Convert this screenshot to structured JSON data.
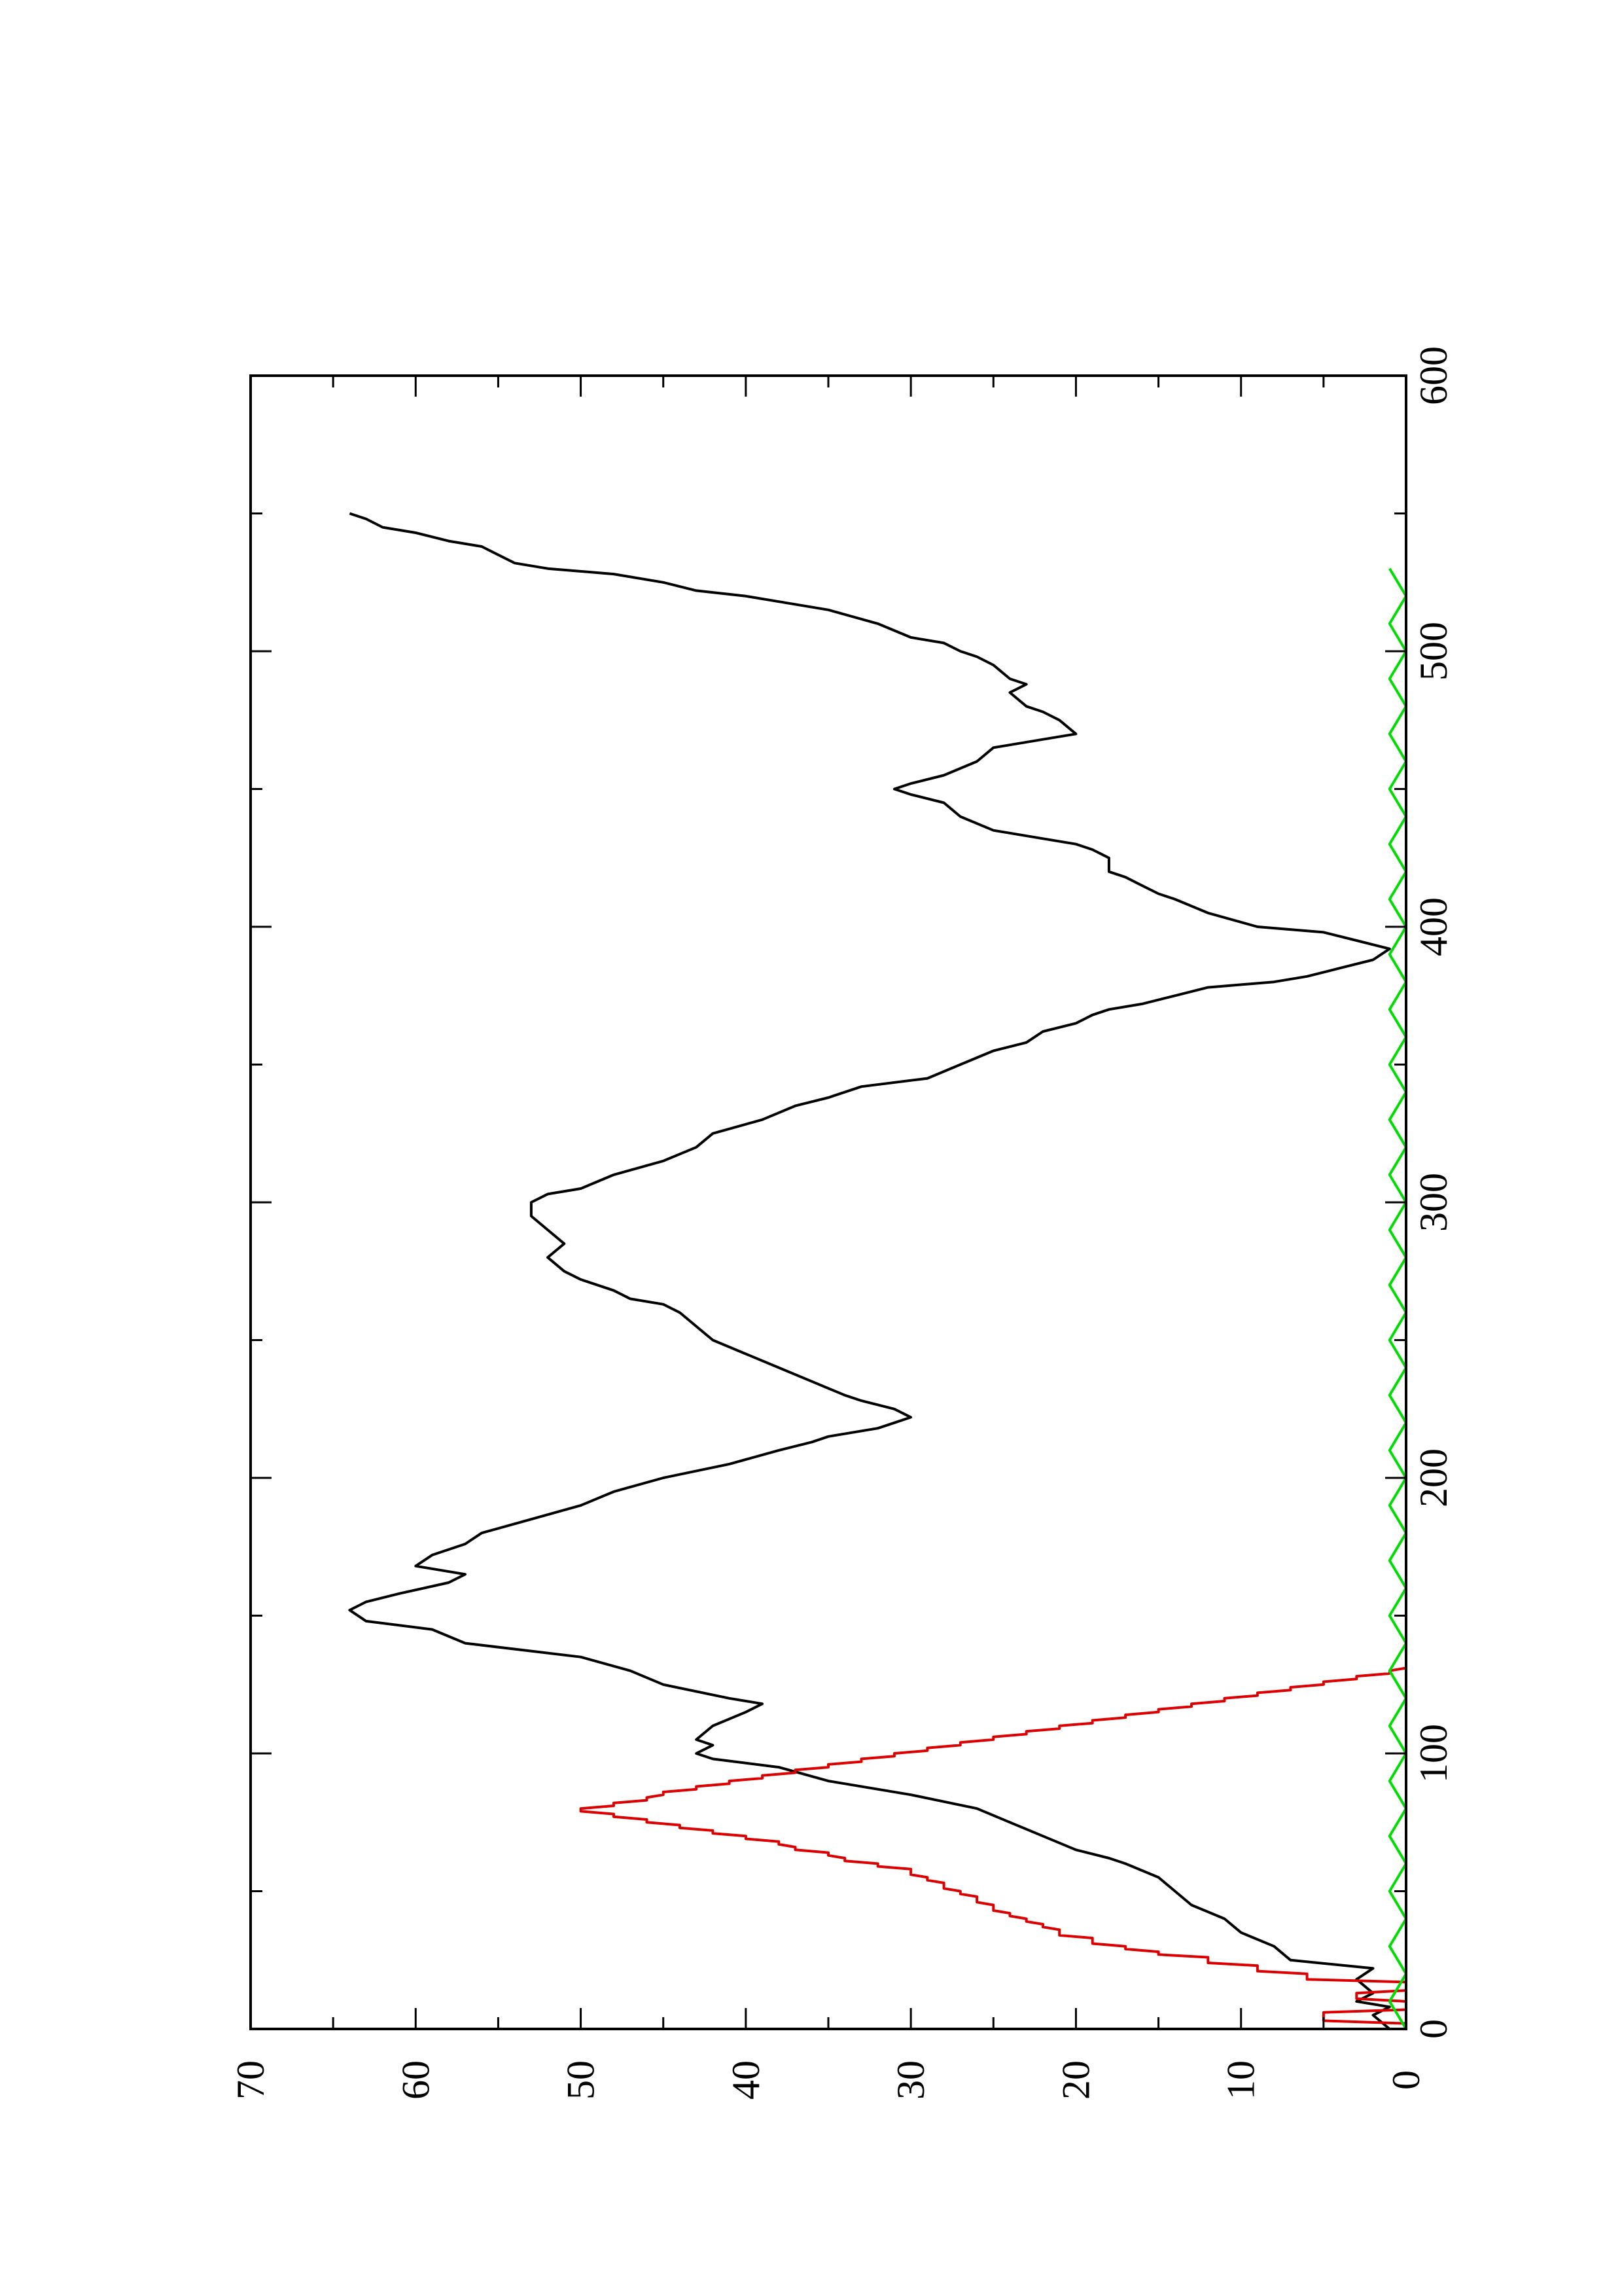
{
  "chart_data": {
    "type": "line",
    "orientation": "rotated-90-ccw",
    "xlim": [
      0,
      600
    ],
    "ylim": [
      0,
      70
    ],
    "x_ticks": [
      0,
      100,
      200,
      300,
      400,
      500,
      600
    ],
    "x_minor_ticks": [
      50,
      150,
      250,
      350,
      450,
      550
    ],
    "y_ticks": [
      0,
      10,
      20,
      30,
      40,
      50,
      60,
      70
    ],
    "y_minor_ticks": [
      5,
      15,
      25,
      35,
      45,
      55,
      65
    ],
    "grid": false,
    "legend": "none",
    "title": "",
    "xlabel": "",
    "ylabel": "",
    "series": [
      {
        "color": "#000000",
        "points": [
          [
            0,
            1
          ],
          [
            5,
            2
          ],
          [
            8,
            1
          ],
          [
            10,
            3
          ],
          [
            13,
            2
          ],
          [
            18,
            3
          ],
          [
            22,
            2
          ],
          [
            25,
            7
          ],
          [
            30,
            8
          ],
          [
            35,
            10
          ],
          [
            40,
            11
          ],
          [
            45,
            13
          ],
          [
            50,
            14
          ],
          [
            55,
            15
          ],
          [
            60,
            17
          ],
          [
            62,
            18
          ],
          [
            65,
            20
          ],
          [
            70,
            22
          ],
          [
            75,
            24
          ],
          [
            80,
            26
          ],
          [
            85,
            30
          ],
          [
            90,
            35
          ],
          [
            95,
            38
          ],
          [
            98,
            42
          ],
          [
            100,
            43
          ],
          [
            103,
            42
          ],
          [
            105,
            43
          ],
          [
            110,
            42
          ],
          [
            115,
            40
          ],
          [
            118,
            39
          ],
          [
            120,
            41
          ],
          [
            125,
            45
          ],
          [
            130,
            47
          ],
          [
            135,
            50
          ],
          [
            140,
            57
          ],
          [
            145,
            59
          ],
          [
            148,
            63
          ],
          [
            152,
            64
          ],
          [
            155,
            63
          ],
          [
            158,
            61
          ],
          [
            162,
            58
          ],
          [
            165,
            57
          ],
          [
            168,
            60
          ],
          [
            172,
            59
          ],
          [
            176,
            57
          ],
          [
            180,
            56
          ],
          [
            185,
            53
          ],
          [
            190,
            50
          ],
          [
            195,
            48
          ],
          [
            200,
            45
          ],
          [
            205,
            41
          ],
          [
            210,
            38
          ],
          [
            213,
            36
          ],
          [
            215,
            35
          ],
          [
            218,
            32
          ],
          [
            220,
            31
          ],
          [
            222,
            30
          ],
          [
            225,
            31
          ],
          [
            228,
            33
          ],
          [
            230,
            34
          ],
          [
            235,
            36
          ],
          [
            240,
            38
          ],
          [
            245,
            40
          ],
          [
            250,
            42
          ],
          [
            255,
            43
          ],
          [
            260,
            44
          ],
          [
            263,
            45
          ],
          [
            265,
            47
          ],
          [
            268,
            48
          ],
          [
            272,
            50
          ],
          [
            275,
            51
          ],
          [
            280,
            52
          ],
          [
            285,
            51
          ],
          [
            290,
            52
          ],
          [
            295,
            53
          ],
          [
            300,
            53
          ],
          [
            303,
            52
          ],
          [
            305,
            50
          ],
          [
            310,
            48
          ],
          [
            315,
            45
          ],
          [
            320,
            43
          ],
          [
            325,
            42
          ],
          [
            330,
            39
          ],
          [
            335,
            37
          ],
          [
            338,
            35
          ],
          [
            342,
            33
          ],
          [
            345,
            29
          ],
          [
            350,
            27
          ],
          [
            355,
            25
          ],
          [
            358,
            23
          ],
          [
            362,
            22
          ],
          [
            365,
            20
          ],
          [
            368,
            19
          ],
          [
            370,
            18
          ],
          [
            372,
            16
          ],
          [
            375,
            14
          ],
          [
            378,
            12
          ],
          [
            380,
            8
          ],
          [
            382,
            6
          ],
          [
            385,
            4
          ],
          [
            388,
            2
          ],
          [
            392,
            1
          ],
          [
            395,
            3
          ],
          [
            398,
            5
          ],
          [
            400,
            9
          ],
          [
            405,
            12
          ],
          [
            410,
            14
          ],
          [
            412,
            15
          ],
          [
            415,
            16
          ],
          [
            418,
            17
          ],
          [
            420,
            18
          ],
          [
            425,
            18
          ],
          [
            428,
            19
          ],
          [
            430,
            20
          ],
          [
            432,
            22
          ],
          [
            435,
            25
          ],
          [
            440,
            27
          ],
          [
            445,
            28
          ],
          [
            448,
            30
          ],
          [
            450,
            31
          ],
          [
            452,
            30
          ],
          [
            455,
            28
          ],
          [
            460,
            26
          ],
          [
            465,
            25
          ],
          [
            468,
            22
          ],
          [
            470,
            20
          ],
          [
            475,
            21
          ],
          [
            478,
            22
          ],
          [
            480,
            23
          ],
          [
            485,
            24
          ],
          [
            488,
            23
          ],
          [
            490,
            24
          ],
          [
            495,
            25
          ],
          [
            498,
            26
          ],
          [
            500,
            27
          ],
          [
            503,
            28
          ],
          [
            505,
            30
          ],
          [
            510,
            32
          ],
          [
            515,
            35
          ],
          [
            518,
            38
          ],
          [
            520,
            40
          ],
          [
            522,
            43
          ],
          [
            525,
            45
          ],
          [
            528,
            48
          ],
          [
            530,
            52
          ],
          [
            532,
            54
          ],
          [
            535,
            55
          ],
          [
            538,
            56
          ],
          [
            540,
            58
          ],
          [
            543,
            60
          ],
          [
            545,
            62
          ],
          [
            548,
            63
          ],
          [
            550,
            64
          ]
        ]
      },
      {
        "color": "#dd0000",
        "points": [
          [
            0,
            0
          ],
          [
            2,
            0
          ],
          [
            3,
            5
          ],
          [
            6,
            5
          ],
          [
            7,
            0
          ],
          [
            10,
            0
          ],
          [
            11,
            3
          ],
          [
            13,
            3
          ],
          [
            14,
            0
          ],
          [
            17,
            0
          ],
          [
            18,
            6
          ],
          [
            20,
            6
          ],
          [
            21,
            9
          ],
          [
            23,
            9
          ],
          [
            24,
            12
          ],
          [
            26,
            12
          ],
          [
            27,
            15
          ],
          [
            28,
            15
          ],
          [
            29,
            17
          ],
          [
            30,
            17
          ],
          [
            31,
            19
          ],
          [
            33,
            19
          ],
          [
            34,
            21
          ],
          [
            36,
            21
          ],
          [
            37,
            22
          ],
          [
            38,
            22
          ],
          [
            39,
            23
          ],
          [
            40,
            23
          ],
          [
            41,
            24
          ],
          [
            42,
            24
          ],
          [
            43,
            25
          ],
          [
            45,
            25
          ],
          [
            46,
            26
          ],
          [
            48,
            26
          ],
          [
            49,
            27
          ],
          [
            50,
            27
          ],
          [
            51,
            28
          ],
          [
            53,
            28
          ],
          [
            54,
            29
          ],
          [
            55,
            29
          ],
          [
            56,
            30
          ],
          [
            58,
            30
          ],
          [
            59,
            32
          ],
          [
            60,
            32
          ],
          [
            61,
            34
          ],
          [
            62,
            34
          ],
          [
            63,
            35
          ],
          [
            64,
            35
          ],
          [
            65,
            37
          ],
          [
            66,
            37
          ],
          [
            67,
            38
          ],
          [
            68,
            38
          ],
          [
            69,
            40
          ],
          [
            70,
            40
          ],
          [
            71,
            42
          ],
          [
            72,
            42
          ],
          [
            73,
            44
          ],
          [
            74,
            44
          ],
          [
            75,
            46
          ],
          [
            76,
            46
          ],
          [
            77,
            48
          ],
          [
            78,
            48
          ],
          [
            79,
            50
          ],
          [
            80,
            50
          ],
          [
            81,
            48
          ],
          [
            82,
            48
          ],
          [
            83,
            46
          ],
          [
            84,
            46
          ],
          [
            85,
            45
          ],
          [
            86,
            45
          ],
          [
            87,
            43
          ],
          [
            88,
            43
          ],
          [
            89,
            41
          ],
          [
            90,
            41
          ],
          [
            91,
            39
          ],
          [
            92,
            39
          ],
          [
            93,
            37
          ],
          [
            94,
            37
          ],
          [
            95,
            35
          ],
          [
            96,
            35
          ],
          [
            97,
            33
          ],
          [
            98,
            33
          ],
          [
            99,
            31
          ],
          [
            100,
            31
          ],
          [
            101,
            29
          ],
          [
            102,
            29
          ],
          [
            103,
            27
          ],
          [
            104,
            27
          ],
          [
            105,
            25
          ],
          [
            106,
            25
          ],
          [
            107,
            23
          ],
          [
            108,
            23
          ],
          [
            109,
            21
          ],
          [
            110,
            21
          ],
          [
            111,
            19
          ],
          [
            112,
            19
          ],
          [
            113,
            17
          ],
          [
            114,
            17
          ],
          [
            115,
            15
          ],
          [
            116,
            15
          ],
          [
            117,
            13
          ],
          [
            118,
            13
          ],
          [
            119,
            11
          ],
          [
            120,
            11
          ],
          [
            121,
            9
          ],
          [
            122,
            9
          ],
          [
            123,
            7
          ],
          [
            124,
            7
          ],
          [
            125,
            5
          ],
          [
            126,
            5
          ],
          [
            127,
            3
          ],
          [
            128,
            3
          ],
          [
            129,
            1
          ],
          [
            130,
            1
          ],
          [
            131,
            0
          ],
          [
            132,
            0
          ]
        ]
      },
      {
        "color": "#00dd00",
        "points": [
          [
            0,
            0
          ],
          [
            10,
            1
          ],
          [
            20,
            0
          ],
          [
            30,
            1
          ],
          [
            40,
            0
          ],
          [
            50,
            1
          ],
          [
            60,
            0
          ],
          [
            70,
            1
          ],
          [
            80,
            0
          ],
          [
            90,
            1
          ],
          [
            100,
            0
          ],
          [
            110,
            1
          ],
          [
            120,
            0
          ],
          [
            130,
            1
          ],
          [
            140,
            0
          ],
          [
            150,
            1
          ],
          [
            160,
            0
          ],
          [
            170,
            1
          ],
          [
            180,
            0
          ],
          [
            190,
            1
          ],
          [
            200,
            0
          ],
          [
            210,
            1
          ],
          [
            220,
            0
          ],
          [
            230,
            1
          ],
          [
            240,
            0
          ],
          [
            250,
            1
          ],
          [
            260,
            0
          ],
          [
            270,
            1
          ],
          [
            280,
            0
          ],
          [
            290,
            1
          ],
          [
            300,
            0
          ],
          [
            310,
            1
          ],
          [
            320,
            0
          ],
          [
            330,
            1
          ],
          [
            340,
            0
          ],
          [
            350,
            1
          ],
          [
            360,
            0
          ],
          [
            370,
            1
          ],
          [
            380,
            0
          ],
          [
            390,
            1
          ],
          [
            400,
            0
          ],
          [
            410,
            1
          ],
          [
            420,
            0
          ],
          [
            430,
            1
          ],
          [
            440,
            0
          ],
          [
            450,
            1
          ],
          [
            460,
            0
          ],
          [
            470,
            1
          ],
          [
            480,
            0
          ],
          [
            490,
            1
          ],
          [
            500,
            0
          ],
          [
            510,
            1
          ],
          [
            520,
            0
          ],
          [
            530,
            1
          ]
        ]
      }
    ]
  }
}
